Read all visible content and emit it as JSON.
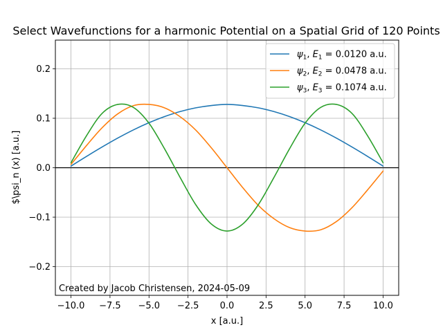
{
  "chart_data": {
    "type": "line",
    "title": "Select Wavefunctions for a harmonic Potential on a Spatial Grid of 120 Points",
    "xlabel": "x [a.u.]",
    "ylabel": "$\\psi_n (x) [a.u.]",
    "xlim": [
      -11.0,
      11.0
    ],
    "ylim": [
      -0.258,
      0.258
    ],
    "xticks": [
      -10.0,
      -7.5,
      -5.0,
      -2.5,
      0.0,
      2.5,
      5.0,
      7.5,
      10.0
    ],
    "xtick_labels": [
      "−10.0",
      "−7.5",
      "−5.0",
      "−2.5",
      "0.0",
      "2.5",
      "5.0",
      "7.5",
      "10.0"
    ],
    "yticks": [
      -0.2,
      -0.1,
      0.0,
      0.1,
      0.2
    ],
    "ytick_labels": [
      "−0.2",
      "−0.1",
      "0.0",
      "0.1",
      "0.2"
    ],
    "grid": true,
    "legend_position": "top-right",
    "hline_y": 0.0,
    "annotation": "Created by Jacob Christensen, 2024-05-09",
    "series": [
      {
        "name": "ψ₁, E₁ = 0.0120 a.u.",
        "legend_parts": {
          "psi": "ψ",
          "sub": "1",
          "e": "E",
          "esub": "1",
          "value": " = 0.0120 a.u."
        },
        "color": "#1f77b4",
        "x": [
          -10.0,
          -9.0,
          -8.0,
          -7.0,
          -6.0,
          -5.0,
          -4.0,
          -3.0,
          -2.0,
          -1.0,
          0.0,
          1.0,
          2.0,
          3.0,
          4.0,
          5.0,
          6.0,
          7.0,
          8.0,
          9.0,
          10.0
        ],
        "y": [
          0.0033,
          0.023,
          0.042,
          0.06,
          0.0765,
          0.091,
          0.1035,
          0.1136,
          0.1211,
          0.1258,
          0.128,
          0.1258,
          0.1211,
          0.1136,
          0.1035,
          0.091,
          0.0765,
          0.06,
          0.042,
          0.023,
          0.0033
        ]
      },
      {
        "name": "ψ₂, E₂ = 0.0478 a.u.",
        "legend_parts": {
          "psi": "ψ",
          "sub": "2",
          "e": "E",
          "esub": "2",
          "value": " = 0.0478 a.u."
        },
        "color": "#ff7f0e",
        "x": [
          -10.0,
          -9.0,
          -8.0,
          -7.0,
          -6.0,
          -5.0,
          -4.0,
          -3.0,
          -2.0,
          -1.0,
          0.0,
          1.0,
          2.0,
          3.0,
          4.0,
          5.0,
          6.0,
          7.0,
          8.0,
          9.0,
          10.0
        ],
        "y": [
          0.0066,
          0.045,
          0.081,
          0.109,
          0.1255,
          0.128,
          0.121,
          0.103,
          0.076,
          0.04,
          0.0,
          -0.04,
          -0.076,
          -0.103,
          -0.121,
          -0.128,
          -0.1255,
          -0.109,
          -0.081,
          -0.045,
          -0.0066
        ]
      },
      {
        "name": "ψ₃, E₃ = 0.1074 a.u.",
        "legend_parts": {
          "psi": "ψ",
          "sub": "3",
          "e": "E",
          "esub": "3",
          "value": " = 0.1074 a.u."
        },
        "color": "#2ca02c",
        "x": [
          -10.0,
          -9.0,
          -8.0,
          -7.0,
          -6.0,
          -5.0,
          -4.0,
          -3.0,
          -2.0,
          -1.0,
          0.0,
          1.0,
          2.0,
          3.0,
          4.0,
          5.0,
          6.0,
          7.0,
          8.0,
          9.0,
          10.0
        ],
        "y": [
          0.01,
          0.065,
          0.11,
          0.128,
          0.122,
          0.09,
          0.038,
          -0.02,
          -0.075,
          -0.114,
          -0.128,
          -0.114,
          -0.075,
          -0.02,
          0.038,
          0.09,
          0.122,
          0.128,
          0.11,
          0.065,
          0.01
        ]
      }
    ]
  }
}
